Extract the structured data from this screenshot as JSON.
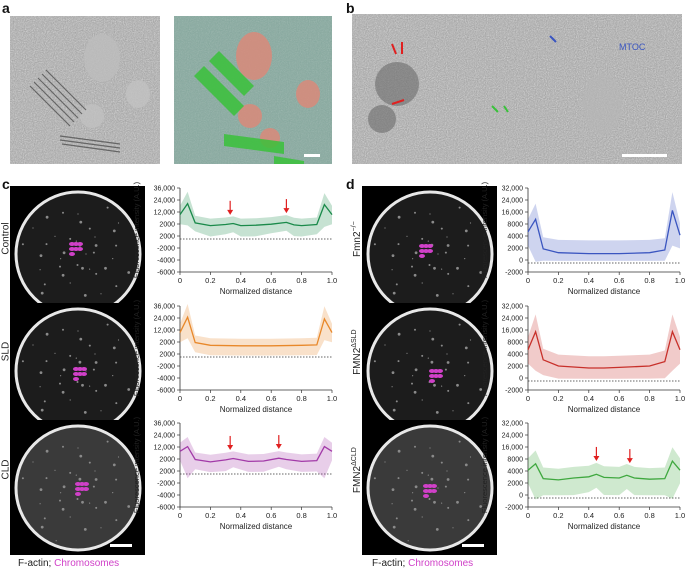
{
  "panels": {
    "a": "a",
    "b": "b",
    "c": "c",
    "d": "d"
  },
  "em_b": {
    "annotation_blue": "MTOC"
  },
  "colors": {
    "green": "#1a8a4a",
    "orange": "#e8882a",
    "purple": "#a23aa8",
    "blue": "#3a55c0",
    "red": "#c8302a",
    "lightgreen": "#3fa83f",
    "arrow": "#e02020",
    "chromosome": "#d040c8"
  },
  "common": {
    "ylabel": "Fluorescence intensity (A.U.)",
    "xlabel": "Normalized distance"
  },
  "legend": {
    "factin": "F-actin;",
    "chromosomes": "Chromosomes"
  },
  "rows": {
    "control": "Control",
    "sld": "SLD",
    "cld": "CLD",
    "fmn2": "Fmn2",
    "fmn2_sup": "−/−",
    "fmn2sld": "FMN2",
    "fmn2sld_sup": "ΔSLD",
    "fmn2cld": "FMN2",
    "fmn2cld_sup": "ΔCLD"
  },
  "chart_data": [
    {
      "type": "line",
      "panel": "c",
      "label": "Control",
      "color": "#1a8a4a",
      "yticks": [
        "36,000",
        "24,000",
        "12,000",
        "2000",
        "2000",
        "-2000",
        "-4000",
        "-6000"
      ],
      "xticks": [
        "0",
        "0.2",
        "0.4",
        "0.6",
        "0.8",
        "1.0"
      ],
      "x": [
        0,
        0.05,
        0.1,
        0.2,
        0.3,
        0.35,
        0.4,
        0.5,
        0.6,
        0.7,
        0.75,
        0.8,
        0.9,
        0.95,
        1.0
      ],
      "y": [
        6000,
        15000,
        2000,
        1200,
        1500,
        1800,
        1200,
        1300,
        1600,
        2200,
        1400,
        1200,
        1500,
        14000,
        6000
      ],
      "arrows": [
        0.33,
        0.7
      ]
    },
    {
      "type": "line",
      "panel": "c",
      "label": "SLD",
      "color": "#e8882a",
      "yticks": [
        "36,000",
        "24,000",
        "12,000",
        "2000",
        "2000",
        "-2000",
        "-4000",
        "-6000"
      ],
      "xticks": [
        "0",
        "0.2",
        "0.4",
        "0.6",
        "0.8",
        "1.0"
      ],
      "x": [
        0,
        0.05,
        0.1,
        0.2,
        0.4,
        0.5,
        0.6,
        0.8,
        0.9,
        0.95,
        1.0
      ],
      "y": [
        6000,
        20000,
        1500,
        800,
        700,
        700,
        700,
        800,
        900,
        18000,
        6000
      ],
      "arrows": []
    },
    {
      "type": "line",
      "panel": "c",
      "label": "CLD",
      "color": "#a23aa8",
      "yticks": [
        "36,000",
        "24,000",
        "12,000",
        "2000",
        "2000",
        "-2000",
        "-4000",
        "-6000"
      ],
      "xticks": [
        "0",
        "0.2",
        "0.4",
        "0.6",
        "0.8",
        "1.0"
      ],
      "x": [
        0,
        0.05,
        0.1,
        0.2,
        0.3,
        0.35,
        0.45,
        0.55,
        0.65,
        0.7,
        0.8,
        0.9,
        0.95,
        1.0
      ],
      "y": [
        5000,
        8000,
        1500,
        900,
        1400,
        1800,
        1000,
        1100,
        1900,
        1500,
        1000,
        1200,
        8000,
        5000
      ],
      "arrows": [
        0.33,
        0.65
      ]
    },
    {
      "type": "line",
      "panel": "d",
      "label": "Fmn2-/-",
      "color": "#3a55c0",
      "yticks": [
        "32,000",
        "24,000",
        "16,000",
        "8000",
        "4000",
        "2000",
        "0",
        "-2000"
      ],
      "xticks": [
        "0",
        "0.2",
        "0.4",
        "0.6",
        "0.8",
        "1.0"
      ],
      "x": [
        0,
        0.05,
        0.1,
        0.2,
        0.4,
        0.5,
        0.6,
        0.8,
        0.9,
        0.95,
        1.0
      ],
      "y": [
        4000,
        9000,
        500,
        200,
        150,
        150,
        150,
        200,
        400,
        14000,
        3000
      ],
      "arrows": []
    },
    {
      "type": "line",
      "panel": "d",
      "label": "FMN2ΔSLD",
      "color": "#c8302a",
      "yticks": [
        "32,000",
        "24,000",
        "16,000",
        "8000",
        "4000",
        "2000",
        "0",
        "-2000"
      ],
      "xticks": [
        "0",
        "0.2",
        "0.4",
        "0.6",
        "0.8",
        "1.0"
      ],
      "x": [
        0,
        0.05,
        0.1,
        0.2,
        0.4,
        0.5,
        0.6,
        0.8,
        0.9,
        0.95,
        1.0
      ],
      "y": [
        4000,
        12000,
        1500,
        600,
        400,
        400,
        450,
        600,
        1200,
        12000,
        4000
      ],
      "arrows": []
    },
    {
      "type": "line",
      "panel": "d",
      "label": "FMN2ΔCLD",
      "color": "#3fa83f",
      "yticks": [
        "32,000",
        "24,000",
        "16,000",
        "8000",
        "4000",
        "2000",
        "0",
        "-2000"
      ],
      "xticks": [
        "0",
        "0.2",
        "0.4",
        "0.6",
        "0.8",
        "1.0"
      ],
      "x": [
        0,
        0.05,
        0.1,
        0.2,
        0.3,
        0.4,
        0.45,
        0.5,
        0.6,
        0.65,
        0.7,
        0.8,
        0.9,
        0.95,
        1.0
      ],
      "y": [
        3000,
        5000,
        1200,
        1000,
        1300,
        1500,
        2000,
        1400,
        1300,
        1800,
        1300,
        1100,
        1200,
        6000,
        3000
      ],
      "arrows": [
        0.45,
        0.67
      ]
    }
  ]
}
